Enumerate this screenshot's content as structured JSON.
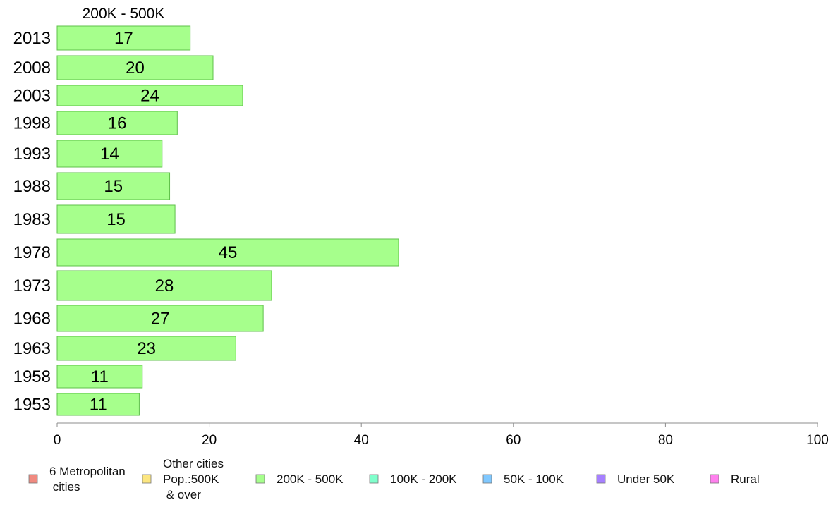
{
  "chart_data": {
    "type": "bar",
    "orientation": "horizontal",
    "title": "200K - 500K",
    "categories": [
      "2013",
      "2008",
      "2003",
      "1998",
      "1993",
      "1988",
      "1983",
      "1978",
      "1973",
      "1968",
      "1963",
      "1958",
      "1953"
    ],
    "series": [
      {
        "name": "200K - 500K",
        "values": [
          17.5,
          20.5,
          24.4,
          15.8,
          13.8,
          14.8,
          15.5,
          44.9,
          28.2,
          27.1,
          23.5,
          11.2,
          10.8
        ],
        "labels": [
          "17",
          "20",
          "24",
          "16",
          "14",
          "15",
          "15",
          "45",
          "28",
          "27",
          "23",
          "11",
          "11"
        ]
      }
    ],
    "xlim": [
      0,
      100
    ],
    "xticks": [
      0,
      20,
      40,
      60,
      80,
      100
    ],
    "grid": false,
    "legend": {
      "position": "bottom",
      "items": [
        {
          "label_lines": [
            "6 Metropolitan",
            " cities"
          ],
          "color": "#f08a80"
        },
        {
          "label_lines": [
            "Other cities",
            "Pop.:500K",
            " & over"
          ],
          "color": "#fce680"
        },
        {
          "label_lines": [
            "200K - 500K"
          ],
          "color": "#a6ff8c"
        },
        {
          "label_lines": [
            "100K - 200K"
          ],
          "color": "#80ffcc"
        },
        {
          "label_lines": [
            "50K - 100K"
          ],
          "color": "#80c8ff"
        },
        {
          "label_lines": [
            "Under 50K"
          ],
          "color": "#a680ff"
        },
        {
          "label_lines": [
            "Rural"
          ],
          "color": "#ff80ee"
        }
      ]
    }
  }
}
